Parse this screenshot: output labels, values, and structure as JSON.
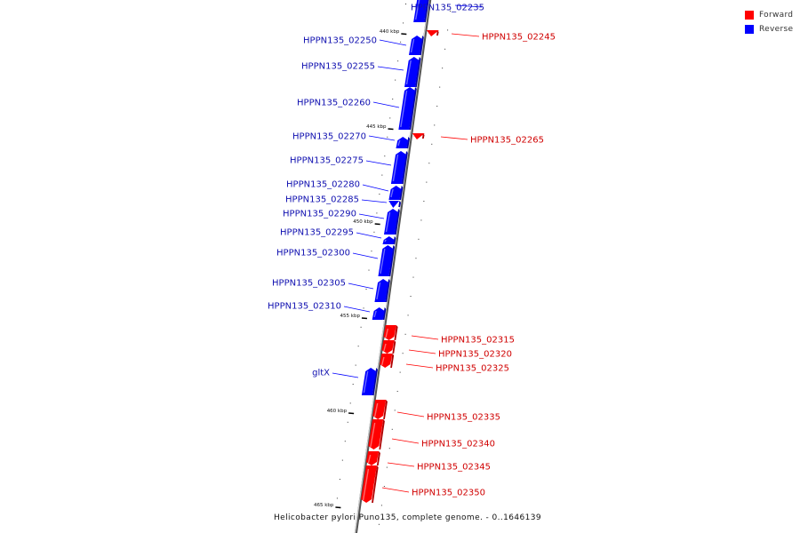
{
  "caption": "Helicobacter pylori Puno135, complete genome. - 0..1646139",
  "legend": [
    {
      "label": "Forward",
      "color": "#ff0000"
    },
    {
      "label": "Reverse",
      "color": "#0000ff"
    }
  ],
  "colors": {
    "forward": "#ff0000",
    "reverse": "#0000ff",
    "backbone": "#888888"
  },
  "scale_ticks": [
    "440 kbp",
    "445 kbp",
    "450 kbp",
    "455 kbp",
    "460 kbp",
    "465 kbp"
  ],
  "genes": [
    {
      "name": "HPPN135_02235",
      "strand": "reverse"
    },
    {
      "name": "HPPN135_02245",
      "strand": "forward"
    },
    {
      "name": "HPPN135_02250",
      "strand": "reverse"
    },
    {
      "name": "HPPN135_02255",
      "strand": "reverse"
    },
    {
      "name": "HPPN135_02260",
      "strand": "reverse"
    },
    {
      "name": "HPPN135_02265",
      "strand": "forward"
    },
    {
      "name": "HPPN135_02270",
      "strand": "reverse"
    },
    {
      "name": "HPPN135_02275",
      "strand": "reverse"
    },
    {
      "name": "HPPN135_02280",
      "strand": "reverse"
    },
    {
      "name": "HPPN135_02285",
      "strand": "reverse"
    },
    {
      "name": "HPPN135_02290",
      "strand": "reverse"
    },
    {
      "name": "HPPN135_02295",
      "strand": "reverse"
    },
    {
      "name": "HPPN135_02300",
      "strand": "reverse"
    },
    {
      "name": "HPPN135_02305",
      "strand": "reverse"
    },
    {
      "name": "HPPN135_02310",
      "strand": "reverse"
    },
    {
      "name": "HPPN135_02315",
      "strand": "forward"
    },
    {
      "name": "HPPN135_02320",
      "strand": "forward"
    },
    {
      "name": "HPPN135_02325",
      "strand": "forward"
    },
    {
      "name": "gltX",
      "strand": "reverse"
    },
    {
      "name": "HPPN135_02335",
      "strand": "forward"
    },
    {
      "name": "HPPN135_02340",
      "strand": "forward"
    },
    {
      "name": "HPPN135_02345",
      "strand": "forward"
    },
    {
      "name": "HPPN135_02350",
      "strand": "forward"
    }
  ]
}
